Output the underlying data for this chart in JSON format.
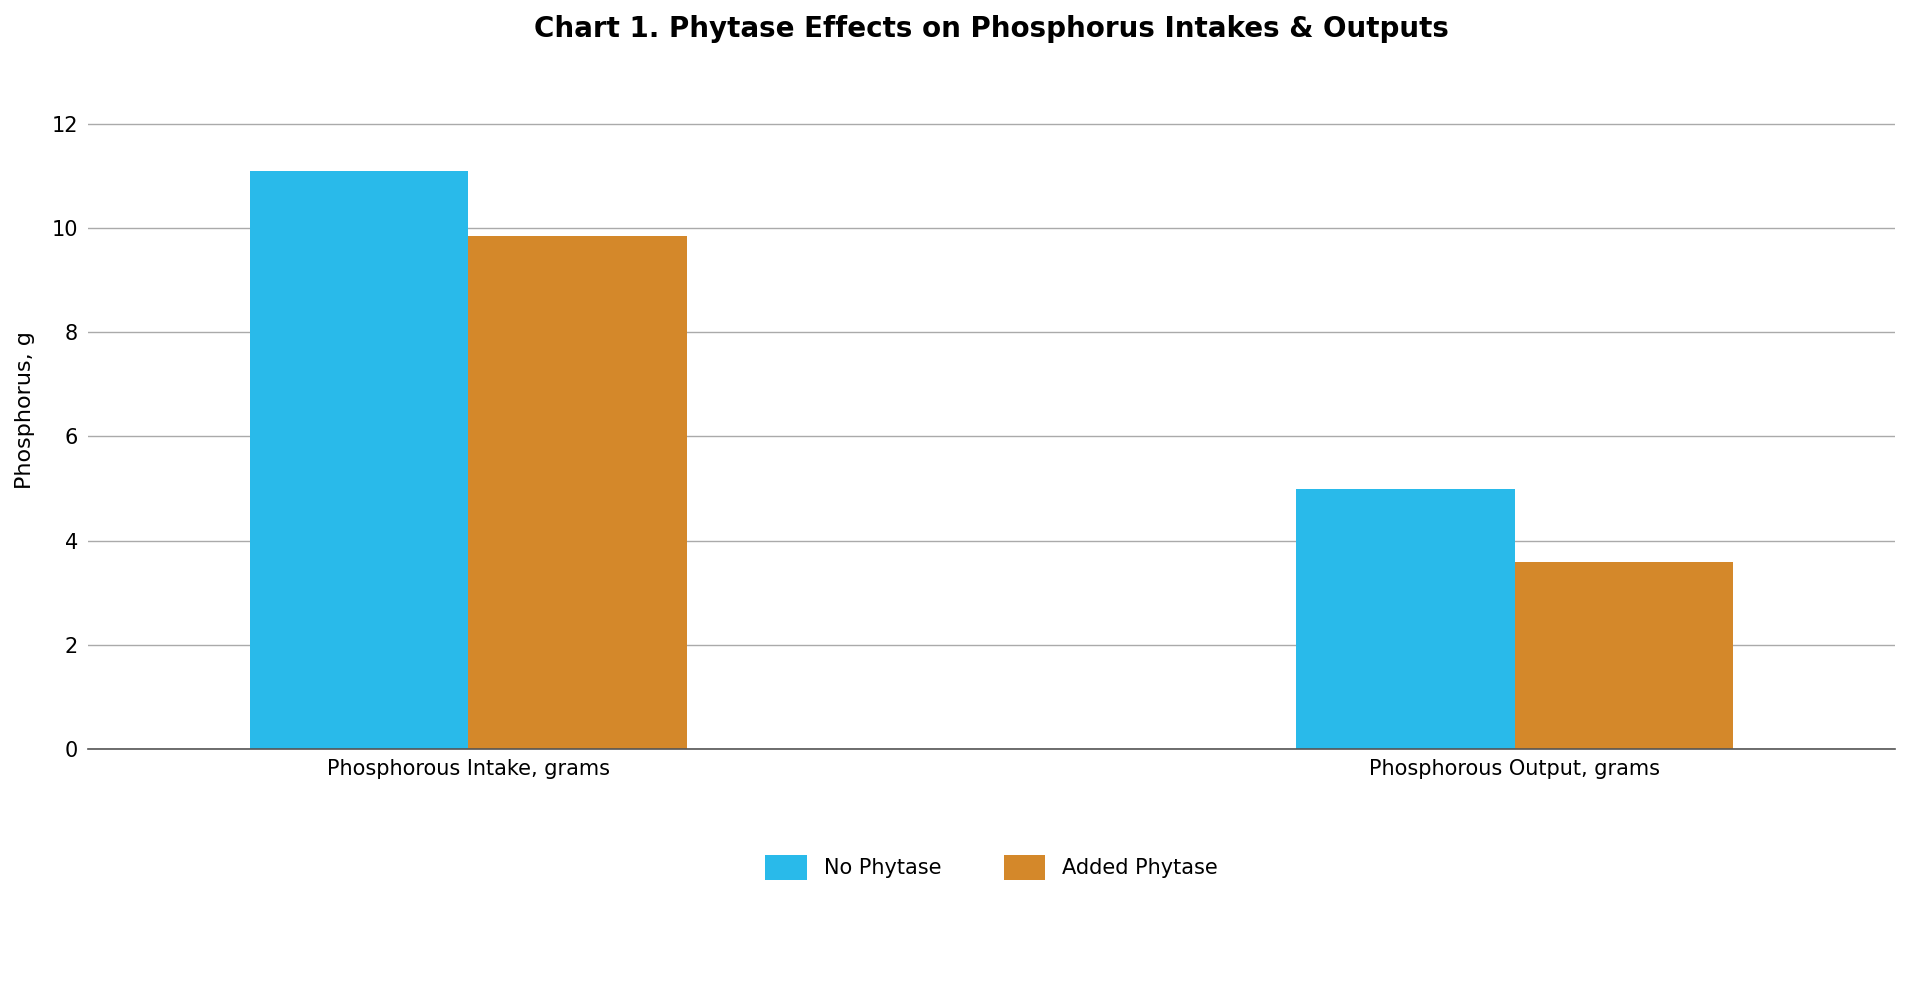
{
  "title": "Chart 1. Phytase Effects on Phosphorus Intakes & Outputs",
  "ylabel": "Phosphorus, g",
  "categories": [
    "Phosphorous Intake, grams",
    "Phosphorous Output, grams"
  ],
  "no_phytase_values": [
    11.1,
    5.0
  ],
  "added_phytase_values": [
    9.85,
    3.6
  ],
  "no_phytase_color": "#29BAEA",
  "added_phytase_color": "#D4882A",
  "legend_labels": [
    "No Phytase",
    "Added Phytase"
  ],
  "ylim": [
    0,
    13
  ],
  "yticks": [
    0,
    2,
    4,
    6,
    8,
    10,
    12
  ],
  "bar_width": 0.46,
  "group_centers": [
    1.0,
    3.2
  ],
  "background_color": "#ffffff",
  "title_fontsize": 20,
  "axis_label_fontsize": 16,
  "tick_fontsize": 15,
  "legend_fontsize": 15,
  "grid_color": "#aaaaaa",
  "grid_linewidth": 1.0
}
